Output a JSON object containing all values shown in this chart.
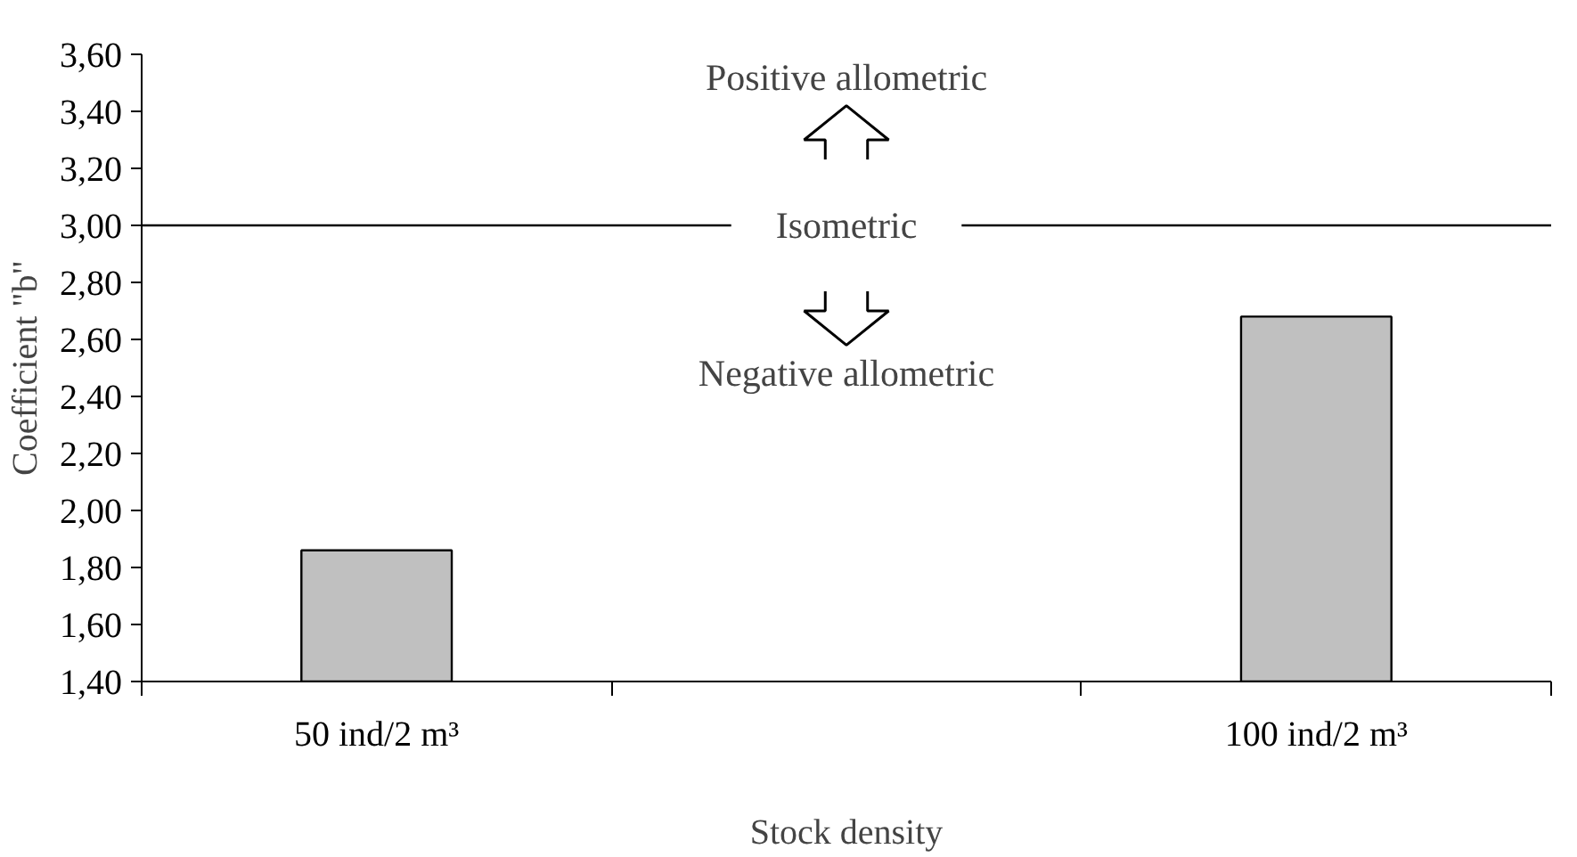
{
  "chart_data": {
    "type": "bar",
    "xlabel": "Stock density",
    "ylabel": "Coefficient \"b\"",
    "categories": [
      "50 ind/2 m³",
      null,
      "100 ind/2 m³"
    ],
    "values": [
      1.86,
      null,
      2.68
    ],
    "color": "#c0c0c0",
    "ylim": [
      1.4,
      3.6
    ],
    "yticks": [
      {
        "value": 1.4,
        "label": "1,40"
      },
      {
        "value": 1.6,
        "label": "1,60"
      },
      {
        "value": 1.8,
        "label": "1,80"
      },
      {
        "value": 2.0,
        "label": "2,00"
      },
      {
        "value": 2.2,
        "label": "2,20"
      },
      {
        "value": 2.4,
        "label": "2,40"
      },
      {
        "value": 2.6,
        "label": "2,60"
      },
      {
        "value": 2.8,
        "label": "2,80"
      },
      {
        "value": 3.0,
        "label": "3,00"
      },
      {
        "value": 3.2,
        "label": "3,20"
      },
      {
        "value": 3.4,
        "label": "3,40"
      },
      {
        "value": 3.6,
        "label": "3,60"
      }
    ],
    "ref_lines": [
      {
        "axis": "y",
        "value": 3.0,
        "label": "Isometric",
        "color": "#000000"
      }
    ],
    "annotations": [
      "Positive allometric",
      "Negative allometric"
    ],
    "grid": false
  }
}
